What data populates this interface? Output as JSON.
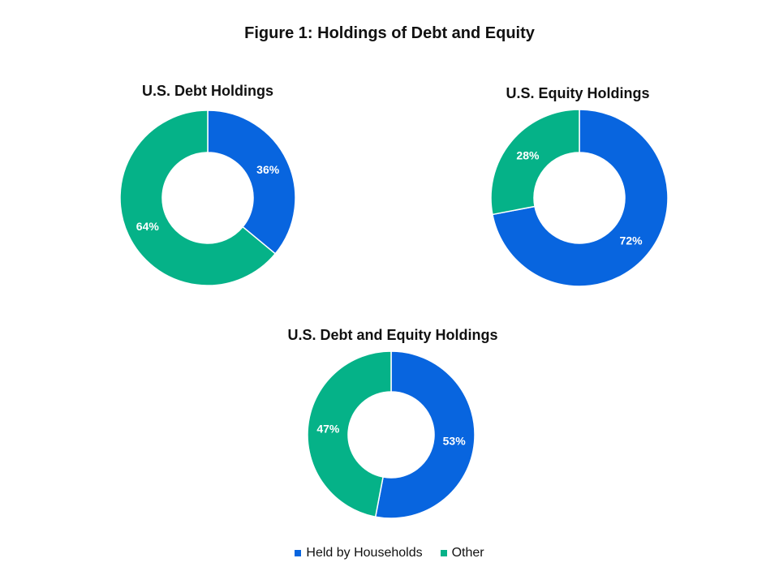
{
  "title": "Figure 1: Holdings of Debt and Equity",
  "colors": {
    "held_by_households": "#0865df",
    "other": "#05b288"
  },
  "legend": [
    {
      "label": "Held by Households",
      "color": "#0865df"
    },
    {
      "label": "Other",
      "color": "#05b288"
    }
  ],
  "chart_data": [
    {
      "type": "pie",
      "title": "U.S. Debt Holdings",
      "categories": [
        "Held by Households",
        "Other"
      ],
      "values": [
        36,
        64
      ],
      "labels": [
        "36%",
        "64%"
      ],
      "colors": [
        "#0865df",
        "#05b288"
      ]
    },
    {
      "type": "pie",
      "title": "U.S. Equity Holdings",
      "categories": [
        "Held by Households",
        "Other"
      ],
      "values": [
        72,
        28
      ],
      "labels": [
        "72%",
        "28%"
      ],
      "colors": [
        "#0865df",
        "#05b288"
      ]
    },
    {
      "type": "pie",
      "title": "U.S. Debt and Equity Holdings",
      "categories": [
        "Held by Households",
        "Other"
      ],
      "values": [
        53,
        47
      ],
      "labels": [
        "53%",
        "47%"
      ],
      "colors": [
        "#0865df",
        "#05b288"
      ]
    }
  ]
}
